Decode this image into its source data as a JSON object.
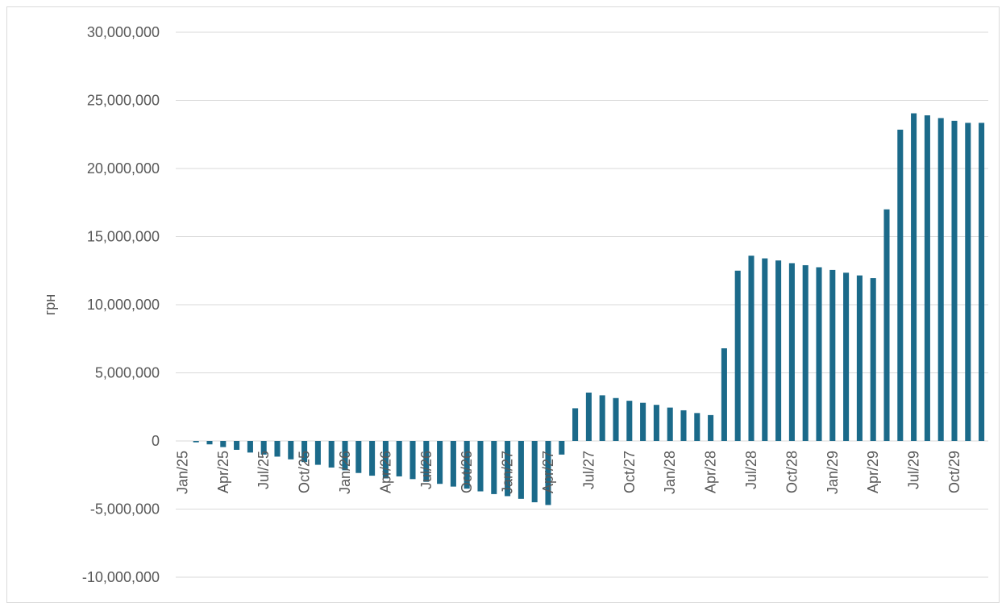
{
  "chart_data": {
    "type": "bar",
    "title": "",
    "xlabel": "",
    "ylabel": "грн",
    "ylim": [
      -10000000,
      30000000
    ],
    "y_ticks": [
      30000000,
      25000000,
      20000000,
      15000000,
      10000000,
      5000000,
      0,
      -5000000,
      -10000000
    ],
    "y_tick_labels": [
      "30,000,000",
      "25,000,000",
      "20,000,000",
      "15,000,000",
      "10,000,000",
      "5,000,000",
      "0",
      "-5,000,000",
      "-10,000,000"
    ],
    "grid": true,
    "legend": "none",
    "bar_color": "#1b6a8a",
    "categories": [
      "Jan/25",
      "Feb/25",
      "Mar/25",
      "Apr/25",
      "May/25",
      "Jun/25",
      "Jul/25",
      "Aug/25",
      "Sep/25",
      "Oct/25",
      "Nov/25",
      "Dec/25",
      "Jan/26",
      "Feb/26",
      "Mar/26",
      "Apr/26",
      "May/26",
      "Jun/26",
      "Jul/26",
      "Aug/26",
      "Sep/26",
      "Oct/26",
      "Nov/26",
      "Dec/26",
      "Jan/27",
      "Feb/27",
      "Mar/27",
      "Apr/27",
      "May/27",
      "Jun/27",
      "Jul/27",
      "Aug/27",
      "Sep/27",
      "Oct/27",
      "Nov/27",
      "Dec/27",
      "Jan/28",
      "Feb/28",
      "Mar/28",
      "Apr/28",
      "May/28",
      "Jun/28",
      "Jul/28",
      "Aug/28",
      "Sep/28",
      "Oct/28",
      "Nov/28",
      "Dec/28",
      "Jan/29",
      "Feb/29",
      "Mar/29",
      "Apr/29",
      "May/29",
      "Jun/29",
      "Jul/29",
      "Aug/29",
      "Sep/29",
      "Oct/29",
      "Nov/29",
      "Dec/29"
    ],
    "x_tick_labels": [
      "Jan/25",
      "",
      "",
      "Apr/25",
      "",
      "",
      "Jul/25",
      "",
      "",
      "Oct/25",
      "",
      "",
      "Jan/26",
      "",
      "",
      "Apr/26",
      "",
      "",
      "Jul/26",
      "",
      "",
      "Oct/26",
      "",
      "",
      "Jan/27",
      "",
      "",
      "Apr/27",
      "",
      "",
      "Jul/27",
      "",
      "",
      "Oct/27",
      "",
      "",
      "Jan/28",
      "",
      "",
      "Apr/28",
      "",
      "",
      "Jul/28",
      "",
      "",
      "Oct/28",
      "",
      "",
      "Jan/29",
      "",
      "",
      "Apr/29",
      "",
      "",
      "Jul/29",
      "",
      "",
      "Oct/29",
      "",
      ""
    ],
    "values": [
      0,
      -100000,
      -250000,
      -450000,
      -650000,
      -850000,
      -1000000,
      -1150000,
      -1350000,
      -1550000,
      -1750000,
      -1950000,
      -2150000,
      -2350000,
      -2550000,
      -2750000,
      -2600000,
      -2800000,
      -3000000,
      -3150000,
      -3350000,
      -3500000,
      -3700000,
      -3900000,
      -4050000,
      -4250000,
      -4500000,
      -4700000,
      -1000000,
      2400000,
      3550000,
      3350000,
      3150000,
      2950000,
      2800000,
      2650000,
      2450000,
      2250000,
      2050000,
      1900000,
      6800000,
      12500000,
      13600000,
      13400000,
      13250000,
      13050000,
      12900000,
      12750000,
      12550000,
      12350000,
      12150000,
      11950000,
      17000000,
      22850000,
      24050000,
      23900000,
      23700000,
      23500000,
      23350000,
      23350000
    ]
  }
}
